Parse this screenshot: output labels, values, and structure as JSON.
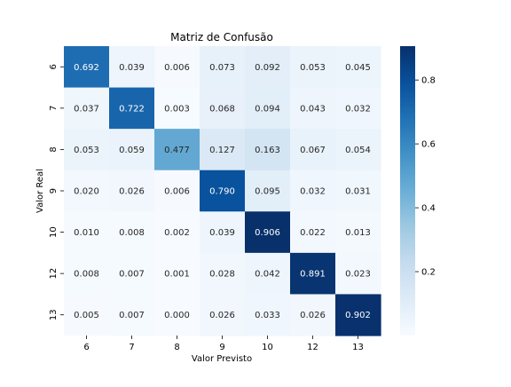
{
  "chart_data": {
    "type": "heatmap",
    "title": "Matriz de Confusão",
    "xlabel": "Valor Previsto",
    "ylabel": "Valor Real",
    "x_categories": [
      "6",
      "7",
      "8",
      "9",
      "10",
      "12",
      "13"
    ],
    "y_categories": [
      "6",
      "7",
      "8",
      "9",
      "10",
      "12",
      "13"
    ],
    "values": [
      [
        0.692,
        0.039,
        0.006,
        0.073,
        0.092,
        0.053,
        0.045
      ],
      [
        0.037,
        0.722,
        0.003,
        0.068,
        0.094,
        0.043,
        0.032
      ],
      [
        0.053,
        0.059,
        0.477,
        0.127,
        0.163,
        0.067,
        0.054
      ],
      [
        0.02,
        0.026,
        0.006,
        0.79,
        0.095,
        0.032,
        0.031
      ],
      [
        0.01,
        0.008,
        0.002,
        0.039,
        0.906,
        0.022,
        0.013
      ],
      [
        0.008,
        0.007,
        0.001,
        0.028,
        0.042,
        0.891,
        0.023
      ],
      [
        0.005,
        0.007,
        0.0,
        0.026,
        0.033,
        0.026,
        0.902
      ]
    ],
    "cell_labels": [
      [
        "0.692",
        "0.039",
        "0.006",
        "0.073",
        "0.092",
        "0.053",
        "0.045"
      ],
      [
        "0.037",
        "0.722",
        "0.003",
        "0.068",
        "0.094",
        "0.043",
        "0.032"
      ],
      [
        "0.053",
        "0.059",
        "0.477",
        "0.127",
        "0.163",
        "0.067",
        "0.054"
      ],
      [
        "0.020",
        "0.026",
        "0.006",
        "0.790",
        "0.095",
        "0.032",
        "0.031"
      ],
      [
        "0.010",
        "0.008",
        "0.002",
        "0.039",
        "0.906",
        "0.022",
        "0.013"
      ],
      [
        "0.008",
        "0.007",
        "0.001",
        "0.028",
        "0.042",
        "0.891",
        "0.023"
      ],
      [
        "0.005",
        "0.007",
        "0.000",
        "0.026",
        "0.033",
        "0.026",
        "0.902"
      ]
    ],
    "colormap": "Blues",
    "color_range": [
      0.0,
      0.906
    ],
    "colorbar_ticks": [
      0.2,
      0.4,
      0.6,
      0.8
    ],
    "colorbar_tick_labels": [
      "0.2",
      "0.4",
      "0.6",
      "0.8"
    ],
    "grid": false
  }
}
